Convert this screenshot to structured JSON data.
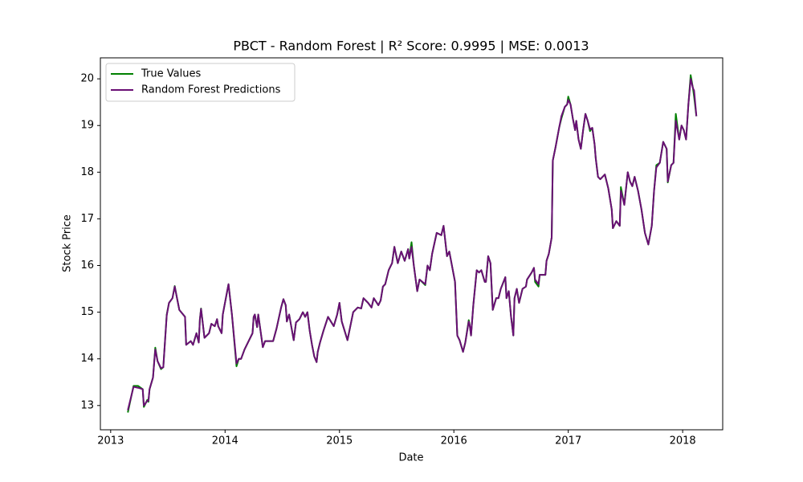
{
  "chart_data": {
    "type": "line",
    "title": "PBCT - Random Forest | R² Score: 0.9995 | MSE: 0.0013",
    "xlabel": "Date",
    "ylabel": "Stock Price",
    "x": [
      2013.15,
      2013.2,
      2013.24,
      2013.28,
      2013.29,
      2013.32,
      2013.33,
      2013.34,
      2013.37,
      2013.39,
      2013.41,
      2013.44,
      2013.46,
      2013.49,
      2013.51,
      2013.54,
      2013.56,
      2013.58,
      2013.6,
      2013.65,
      2013.66,
      2013.7,
      2013.72,
      2013.75,
      2013.77,
      2013.78,
      2013.79,
      2013.82,
      2013.86,
      2013.88,
      2013.91,
      2013.93,
      2013.94,
      2013.97,
      2013.98,
      2014.03,
      2014.06,
      2014.1,
      2014.12,
      2014.14,
      2014.17,
      2014.21,
      2014.24,
      2014.25,
      2014.26,
      2014.28,
      2014.29,
      2014.33,
      2014.35,
      2014.42,
      2014.45,
      2014.49,
      2014.51,
      2014.53,
      2014.54,
      2014.56,
      2014.6,
      2014.62,
      2014.65,
      2014.68,
      2014.7,
      2014.72,
      2014.74,
      2014.76,
      2014.78,
      2014.8,
      2014.81,
      2014.83,
      2014.86,
      2014.9,
      2014.95,
      2014.98,
      2015.0,
      2015.02,
      2015.07,
      2015.12,
      2015.16,
      2015.19,
      2015.21,
      2015.25,
      2015.28,
      2015.3,
      2015.34,
      2015.36,
      2015.38,
      2015.4,
      2015.43,
      2015.46,
      2015.48,
      2015.51,
      2015.54,
      2015.57,
      2015.6,
      2015.61,
      2015.63,
      2015.65,
      2015.68,
      2015.7,
      2015.75,
      2015.77,
      2015.79,
      2015.81,
      2015.85,
      2015.89,
      2015.91,
      2015.94,
      2015.96,
      2016.01,
      2016.03,
      2016.05,
      2016.08,
      2016.1,
      2016.13,
      2016.14,
      2016.15,
      2016.17,
      2016.2,
      2016.22,
      2016.24,
      2016.27,
      2016.28,
      2016.3,
      2016.32,
      2016.34,
      2016.37,
      2016.39,
      2016.41,
      2016.45,
      2016.46,
      2016.48,
      2016.5,
      2016.52,
      2016.53,
      2016.55,
      2016.57,
      2016.6,
      2016.63,
      2016.64,
      2016.68,
      2016.7,
      2016.71,
      2016.74,
      2016.75,
      2016.8,
      2016.81,
      2016.83,
      2016.855,
      2016.865,
      2016.89,
      2016.92,
      2016.94,
      2016.97,
      2016.99,
      2017.0,
      2017.02,
      2017.04,
      2017.06,
      2017.07,
      2017.09,
      2017.11,
      2017.13,
      2017.15,
      2017.17,
      2017.19,
      2017.21,
      2017.23,
      2017.24,
      2017.26,
      2017.28,
      2017.32,
      2017.35,
      2017.38,
      2017.39,
      2017.42,
      2017.45,
      2017.46,
      2017.49,
      2017.52,
      2017.54,
      2017.56,
      2017.58,
      2017.61,
      2017.64,
      2017.67,
      2017.7,
      2017.73,
      2017.75,
      2017.77,
      2017.8,
      2017.83,
      2017.86,
      2017.87,
      2017.9,
      2017.92,
      2017.94,
      2017.97,
      2017.99,
      2018.01,
      2018.03,
      2018.05,
      2018.07,
      2018.09,
      2018.1,
      2018.12
    ],
    "series": [
      {
        "name": "True Values",
        "color": "#008000",
        "values": [
          12.85,
          13.42,
          13.42,
          13.35,
          12.97,
          13.12,
          13.08,
          13.35,
          13.6,
          14.24,
          13.95,
          13.78,
          13.82,
          14.95,
          15.2,
          15.3,
          15.56,
          15.3,
          15.05,
          14.9,
          14.3,
          14.38,
          14.3,
          14.55,
          14.35,
          14.85,
          15.08,
          14.45,
          14.55,
          14.75,
          14.7,
          14.85,
          14.7,
          14.55,
          14.95,
          15.6,
          14.95,
          13.84,
          14.0,
          14.0,
          14.2,
          14.4,
          14.55,
          14.9,
          14.95,
          14.68,
          14.95,
          14.25,
          14.38,
          14.38,
          14.65,
          15.1,
          15.28,
          15.15,
          14.8,
          14.95,
          14.4,
          14.78,
          14.85,
          15.0,
          14.9,
          15.0,
          14.6,
          14.3,
          14.05,
          13.93,
          14.15,
          14.35,
          14.6,
          14.9,
          14.7,
          14.95,
          15.2,
          14.8,
          14.4,
          15.0,
          15.1,
          15.08,
          15.3,
          15.2,
          15.1,
          15.3,
          15.15,
          15.25,
          15.55,
          15.6,
          15.9,
          16.05,
          16.4,
          16.05,
          16.3,
          16.1,
          16.35,
          16.15,
          16.5,
          16.0,
          15.45,
          15.7,
          15.58,
          16.0,
          15.9,
          16.25,
          16.7,
          16.65,
          16.85,
          16.2,
          16.3,
          15.65,
          14.5,
          14.4,
          14.15,
          14.35,
          14.83,
          14.7,
          14.5,
          15.15,
          15.9,
          15.85,
          15.9,
          15.65,
          15.65,
          16.2,
          16.05,
          15.05,
          15.3,
          15.3,
          15.5,
          15.75,
          15.3,
          15.45,
          14.9,
          14.5,
          15.3,
          15.5,
          15.2,
          15.5,
          15.55,
          15.7,
          15.85,
          15.95,
          15.65,
          15.55,
          15.8,
          15.8,
          16.1,
          16.25,
          16.6,
          18.25,
          18.55,
          18.95,
          19.15,
          19.4,
          19.45,
          19.62,
          19.45,
          19.15,
          18.9,
          19.1,
          18.7,
          18.5,
          18.9,
          19.25,
          19.1,
          18.88,
          18.95,
          18.6,
          18.3,
          17.9,
          17.85,
          17.95,
          17.65,
          17.2,
          16.8,
          16.95,
          16.85,
          17.68,
          17.3,
          18.0,
          17.8,
          17.7,
          17.9,
          17.6,
          17.2,
          16.7,
          16.45,
          16.85,
          17.6,
          18.15,
          18.2,
          18.65,
          18.5,
          17.78,
          18.15,
          18.2,
          19.25,
          18.7,
          19.0,
          18.9,
          18.7,
          19.45,
          20.08,
          19.8,
          19.62,
          19.2
        ]
      },
      {
        "name": "Random Forest Predictions",
        "color": "#6a0f75",
        "values": [
          12.9,
          13.4,
          13.38,
          13.35,
          13.0,
          13.1,
          13.1,
          13.35,
          13.6,
          14.2,
          13.95,
          13.8,
          13.82,
          14.93,
          15.2,
          15.3,
          15.55,
          15.3,
          15.05,
          14.9,
          14.3,
          14.38,
          14.3,
          14.55,
          14.35,
          14.85,
          15.07,
          14.45,
          14.55,
          14.75,
          14.7,
          14.85,
          14.7,
          14.55,
          14.95,
          15.6,
          14.95,
          13.9,
          14.0,
          14.0,
          14.2,
          14.4,
          14.55,
          14.9,
          14.95,
          14.68,
          14.95,
          14.25,
          14.38,
          14.38,
          14.65,
          15.1,
          15.28,
          15.15,
          14.8,
          14.95,
          14.4,
          14.78,
          14.85,
          15.0,
          14.9,
          15.0,
          14.6,
          14.3,
          14.05,
          13.93,
          14.15,
          14.35,
          14.6,
          14.9,
          14.7,
          14.95,
          15.2,
          14.8,
          14.4,
          15.0,
          15.1,
          15.08,
          15.3,
          15.2,
          15.1,
          15.3,
          15.15,
          15.25,
          15.55,
          15.6,
          15.9,
          16.05,
          16.4,
          16.05,
          16.3,
          16.1,
          16.35,
          16.15,
          16.4,
          16.0,
          15.45,
          15.7,
          15.6,
          16.0,
          15.9,
          16.25,
          16.7,
          16.65,
          16.85,
          16.2,
          16.3,
          15.65,
          14.5,
          14.4,
          14.15,
          14.35,
          14.8,
          14.7,
          14.5,
          15.15,
          15.9,
          15.85,
          15.9,
          15.65,
          15.65,
          16.2,
          16.05,
          15.05,
          15.3,
          15.3,
          15.5,
          15.75,
          15.3,
          15.45,
          14.9,
          14.5,
          15.3,
          15.5,
          15.2,
          15.5,
          15.55,
          15.7,
          15.85,
          15.95,
          15.7,
          15.6,
          15.8,
          15.8,
          16.1,
          16.25,
          16.6,
          18.25,
          18.55,
          18.95,
          19.2,
          19.4,
          19.45,
          19.55,
          19.45,
          19.15,
          18.9,
          19.1,
          18.7,
          18.5,
          18.9,
          19.25,
          19.1,
          18.92,
          18.95,
          18.6,
          18.3,
          17.9,
          17.85,
          17.95,
          17.65,
          17.2,
          16.8,
          16.95,
          16.85,
          17.6,
          17.3,
          18.0,
          17.8,
          17.7,
          17.9,
          17.6,
          17.2,
          16.7,
          16.45,
          16.85,
          17.6,
          18.1,
          18.2,
          18.65,
          18.5,
          17.8,
          18.15,
          18.2,
          19.1,
          18.7,
          19.0,
          18.9,
          18.7,
          19.45,
          20.0,
          19.8,
          19.75,
          19.2
        ]
      }
    ],
    "xlim": [
      2012.91,
      2018.35
    ],
    "xticks": [
      2013,
      2014,
      2015,
      2016,
      2017,
      2018
    ],
    "ylim": [
      12.48,
      20.45
    ],
    "yticks": [
      13,
      14,
      15,
      16,
      17,
      18,
      19,
      20
    ],
    "legend": "upper left",
    "grid": false
  }
}
